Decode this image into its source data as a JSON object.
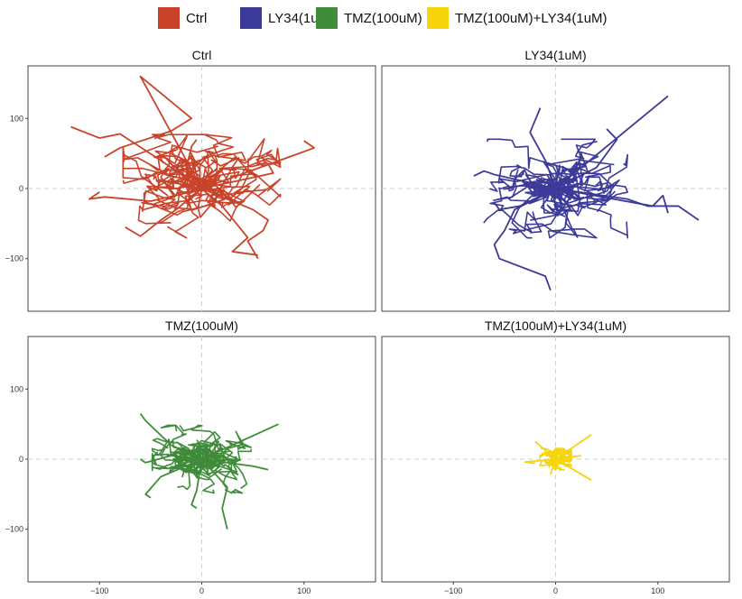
{
  "chart_data": {
    "type": "line",
    "layout": "facet-grid-2x2",
    "legend": {
      "placement": "top",
      "entries": [
        {
          "name": "Ctrl",
          "color": "#C8432A"
        },
        {
          "name": "LY34(1uM)",
          "color": "#3C3A98"
        },
        {
          "name": "TMZ(100uM)",
          "color": "#3F8B3A"
        },
        {
          "name": "TMZ(100uM)+LY34(1uM)",
          "color": "#F6D40C"
        }
      ]
    },
    "xlim": [
      -170,
      170
    ],
    "ylim": [
      -175,
      175
    ],
    "x_ticks": [
      -100,
      0,
      100
    ],
    "y_ticks": [
      100,
      0,
      -100
    ],
    "reference_lines": {
      "x": 0,
      "y": 0,
      "style": "dashed"
    },
    "grid": false,
    "panels": [
      {
        "title": "Ctrl",
        "color": "#C8432A",
        "spread": 35,
        "tracks": [
          [
            [
              0,
              0
            ],
            [
              -40,
              40
            ],
            [
              -80,
              78
            ],
            [
              -100,
              72
            ],
            [
              -128,
              88
            ]
          ],
          [
            [
              0,
              0
            ],
            [
              -60,
              160
            ],
            [
              -10,
              100
            ],
            [
              -30,
              82
            ],
            [
              -80,
              58
            ],
            [
              -95,
              45
            ]
          ],
          [
            [
              0,
              0
            ],
            [
              -20,
              -8
            ],
            [
              -50,
              -18
            ],
            [
              -95,
              -12
            ],
            [
              -110,
              -15
            ],
            [
              -100,
              -5
            ]
          ],
          [
            [
              0,
              0
            ],
            [
              95,
              50
            ],
            [
              110,
              58
            ],
            [
              100,
              68
            ]
          ],
          [
            [
              0,
              0
            ],
            [
              50,
              -30
            ],
            [
              65,
              -45
            ],
            [
              60,
              -60
            ],
            [
              45,
              -75
            ],
            [
              55,
              -100
            ]
          ],
          [
            [
              0,
              0
            ],
            [
              -25,
              -30
            ],
            [
              -40,
              -45
            ],
            [
              -60,
              -68
            ],
            [
              -75,
              -55
            ]
          ],
          [
            [
              0,
              0
            ],
            [
              70,
              22
            ],
            [
              65,
              35
            ],
            [
              60,
              40
            ]
          ],
          [
            [
              0,
              0
            ],
            [
              20,
              -25
            ],
            [
              45,
              -70
            ],
            [
              30,
              -90
            ],
            [
              55,
              -95
            ]
          ],
          [
            [
              0,
              0
            ],
            [
              -15,
              30
            ],
            [
              -10,
              60
            ],
            [
              -5,
              70
            ]
          ]
        ]
      },
      {
        "title": "LY34(1uM)",
        "color": "#3C3A98",
        "spread": 32,
        "tracks": [
          [
            [
              0,
              0
            ],
            [
              110,
              132
            ]
          ],
          [
            [
              0,
              0
            ],
            [
              -10,
              40
            ],
            [
              -25,
              80
            ],
            [
              -15,
              115
            ]
          ],
          [
            [
              0,
              0
            ],
            [
              -40,
              -30
            ],
            [
              -50,
              -60
            ],
            [
              -60,
              -80
            ],
            [
              -55,
              -100
            ],
            [
              -10,
              -125
            ],
            [
              -5,
              -145
            ]
          ],
          [
            [
              0,
              0
            ],
            [
              70,
              -15
            ],
            [
              90,
              -25
            ],
            [
              120,
              -25
            ],
            [
              140,
              -45
            ]
          ],
          [
            [
              0,
              0
            ],
            [
              -60,
              20
            ],
            [
              -70,
              25
            ],
            [
              -80,
              18
            ]
          ],
          [
            [
              0,
              0
            ],
            [
              40,
              30
            ],
            [
              60,
              70
            ],
            [
              50,
              85
            ]
          ],
          [
            [
              0,
              0
            ],
            [
              -35,
              -25
            ],
            [
              -55,
              -30
            ],
            [
              -60,
              -20
            ]
          ],
          [
            [
              0,
              0
            ],
            [
              95,
              -25
            ],
            [
              105,
              -10
            ],
            [
              110,
              -35
            ]
          ]
        ]
      },
      {
        "title": "TMZ(100uM)",
        "color": "#3F8B3A",
        "spread": 22,
        "tracks": [
          [
            [
              0,
              0
            ],
            [
              -30,
              20
            ],
            [
              -55,
              55
            ],
            [
              -60,
              65
            ]
          ],
          [
            [
              0,
              0
            ],
            [
              25,
              -40
            ],
            [
              20,
              -70
            ],
            [
              25,
              -100
            ]
          ],
          [
            [
              0,
              0
            ],
            [
              60,
              40
            ],
            [
              75,
              50
            ]
          ],
          [
            [
              0,
              0
            ],
            [
              -40,
              -25
            ],
            [
              -55,
              -50
            ],
            [
              -50,
              -55
            ]
          ],
          [
            [
              0,
              0
            ],
            [
              50,
              -10
            ],
            [
              65,
              -15
            ]
          ],
          [
            [
              0,
              0
            ],
            [
              -5,
              -45
            ],
            [
              -10,
              -65
            ],
            [
              -5,
              -70
            ]
          ],
          [
            [
              0,
              0
            ],
            [
              -30,
              5
            ],
            [
              -55,
              -5
            ],
            [
              -60,
              0
            ]
          ]
        ]
      },
      {
        "title": "TMZ(100uM)+LY34(1uM)",
        "color": "#F6D40C",
        "spread": 7,
        "tracks": [
          [
            [
              0,
              0
            ],
            [
              35,
              35
            ]
          ],
          [
            [
              0,
              0
            ],
            [
              -20,
              25
            ]
          ],
          [
            [
              0,
              0
            ],
            [
              35,
              -30
            ]
          ],
          [
            [
              0,
              0
            ],
            [
              -30,
              -4
            ],
            [
              -20,
              -6
            ]
          ],
          [
            [
              0,
              0
            ],
            [
              25,
              5
            ]
          ],
          [
            [
              0,
              0
            ],
            [
              -5,
              -22
            ]
          ]
        ]
      }
    ]
  }
}
